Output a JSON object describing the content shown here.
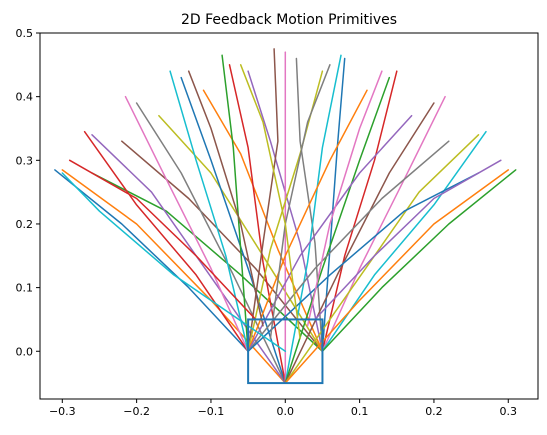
{
  "chart_data": {
    "type": "line",
    "title": "2D Feedback Motion Primitives",
    "xlabel": "",
    "ylabel": "",
    "xlim": [
      -0.33,
      0.34
    ],
    "ylim": [
      -0.075,
      0.5
    ],
    "grid": false,
    "legend": "none",
    "x_ticks": [
      {
        "value": -0.3,
        "label": "−0.3"
      },
      {
        "value": -0.2,
        "label": "−0.2"
      },
      {
        "value": -0.1,
        "label": "−0.1"
      },
      {
        "value": 0.0,
        "label": "0.0"
      },
      {
        "value": 0.1,
        "label": "0.1"
      },
      {
        "value": 0.2,
        "label": "0.2"
      },
      {
        "value": 0.3,
        "label": "0.3"
      }
    ],
    "y_ticks": [
      {
        "value": 0.0,
        "label": "0.0"
      },
      {
        "value": 0.1,
        "label": "0.1"
      },
      {
        "value": 0.2,
        "label": "0.2"
      },
      {
        "value": 0.3,
        "label": "0.3"
      },
      {
        "value": 0.4,
        "label": "0.4"
      },
      {
        "value": 0.5,
        "label": "0.5"
      }
    ],
    "colors": [
      "#1f77b4",
      "#ff7f0e",
      "#2ca02c",
      "#d62728",
      "#9467bd",
      "#8c564b",
      "#e377c2",
      "#7f7f7f",
      "#bcbd22",
      "#17becf"
    ],
    "start_region": {
      "x": [
        -0.05,
        0.05
      ],
      "y": [
        -0.05,
        0.05
      ]
    },
    "series": [
      {
        "values": [
          [
            -0.05,
            0.0
          ],
          [
            -0.13,
            0.1
          ],
          [
            -0.22,
            0.2
          ],
          [
            -0.31,
            0.285
          ]
        ]
      },
      {
        "values": [
          [
            0.0,
            -0.05
          ],
          [
            -0.1,
            0.08
          ],
          [
            -0.2,
            0.2
          ],
          [
            -0.3,
            0.285
          ]
        ]
      },
      {
        "values": [
          [
            0.05,
            0.0
          ],
          [
            -0.06,
            0.12
          ],
          [
            -0.16,
            0.22
          ],
          [
            -0.26,
            0.28
          ]
        ]
      },
      {
        "values": [
          [
            -0.05,
            0.0
          ],
          [
            -0.12,
            0.12
          ],
          [
            -0.2,
            0.23
          ],
          [
            -0.27,
            0.345
          ]
        ]
      },
      {
        "values": [
          [
            0.0,
            -0.05
          ],
          [
            -0.09,
            0.1
          ],
          [
            -0.18,
            0.25
          ],
          [
            -0.26,
            0.34
          ]
        ]
      },
      {
        "values": [
          [
            0.05,
            0.0
          ],
          [
            -0.04,
            0.13
          ],
          [
            -0.13,
            0.24
          ],
          [
            -0.22,
            0.33
          ]
        ]
      },
      {
        "values": [
          [
            -0.05,
            0.0
          ],
          [
            -0.1,
            0.13
          ],
          [
            -0.16,
            0.27
          ],
          [
            -0.215,
            0.4
          ]
        ]
      },
      {
        "values": [
          [
            0.0,
            -0.05
          ],
          [
            -0.07,
            0.12
          ],
          [
            -0.14,
            0.28
          ],
          [
            -0.2,
            0.39
          ]
        ]
      },
      {
        "values": [
          [
            0.05,
            0.0
          ],
          [
            -0.03,
            0.15
          ],
          [
            -0.1,
            0.28
          ],
          [
            -0.17,
            0.37
          ]
        ]
      },
      {
        "values": [
          [
            -0.05,
            0.0
          ],
          [
            -0.08,
            0.15
          ],
          [
            -0.12,
            0.3
          ],
          [
            -0.155,
            0.44
          ]
        ]
      },
      {
        "values": [
          [
            0.0,
            -0.05
          ],
          [
            -0.05,
            0.13
          ],
          [
            -0.1,
            0.3
          ],
          [
            -0.14,
            0.43
          ]
        ]
      },
      {
        "values": [
          [
            0.05,
            0.0
          ],
          [
            -0.01,
            0.16
          ],
          [
            -0.06,
            0.31
          ],
          [
            -0.11,
            0.41
          ]
        ]
      },
      {
        "values": [
          [
            -0.05,
            0.0
          ],
          [
            -0.06,
            0.16
          ],
          [
            -0.07,
            0.32
          ],
          [
            -0.085,
            0.465
          ]
        ]
      },
      {
        "values": [
          [
            0.0,
            -0.05
          ],
          [
            -0.03,
            0.14
          ],
          [
            -0.05,
            0.32
          ],
          [
            -0.075,
            0.45
          ]
        ]
      },
      {
        "values": [
          [
            0.05,
            0.0
          ],
          [
            0.02,
            0.17
          ],
          [
            -0.02,
            0.33
          ],
          [
            -0.05,
            0.44
          ]
        ]
      },
      {
        "values": [
          [
            -0.05,
            0.0
          ],
          [
            -0.03,
            0.17
          ],
          [
            -0.01,
            0.33
          ],
          [
            -0.015,
            0.475
          ]
        ]
      },
      {
        "values": [
          [
            0.0,
            -0.05
          ],
          [
            0.0,
            0.15
          ],
          [
            0.0,
            0.33
          ],
          [
            0.0,
            0.47
          ]
        ]
      },
      {
        "values": [
          [
            0.05,
            0.0
          ],
          [
            0.04,
            0.17
          ],
          [
            0.02,
            0.33
          ],
          [
            0.015,
            0.46
          ]
        ]
      },
      {
        "values": [
          [
            -0.05,
            0.0
          ],
          [
            -0.02,
            0.16
          ],
          [
            0.02,
            0.31
          ],
          [
            0.05,
            0.44
          ]
        ]
      },
      {
        "values": [
          [
            0.0,
            -0.05
          ],
          [
            0.03,
            0.14
          ],
          [
            0.05,
            0.32
          ],
          [
            0.075,
            0.465
          ]
        ]
      },
      {
        "values": [
          [
            0.05,
            0.0
          ],
          [
            0.06,
            0.16
          ],
          [
            0.07,
            0.32
          ],
          [
            0.08,
            0.46
          ]
        ]
      },
      {
        "values": [
          [
            -0.05,
            0.0
          ],
          [
            0.0,
            0.15
          ],
          [
            0.06,
            0.3
          ],
          [
            0.11,
            0.41
          ]
        ]
      },
      {
        "values": [
          [
            0.0,
            -0.05
          ],
          [
            0.05,
            0.13
          ],
          [
            0.1,
            0.3
          ],
          [
            0.14,
            0.43
          ]
        ]
      },
      {
        "values": [
          [
            0.05,
            0.0
          ],
          [
            0.08,
            0.15
          ],
          [
            0.12,
            0.3
          ],
          [
            0.15,
            0.44
          ]
        ]
      },
      {
        "values": [
          [
            -0.05,
            0.0
          ],
          [
            0.02,
            0.15
          ],
          [
            0.1,
            0.28
          ],
          [
            0.17,
            0.37
          ]
        ]
      },
      {
        "values": [
          [
            0.0,
            -0.05
          ],
          [
            0.07,
            0.12
          ],
          [
            0.14,
            0.28
          ],
          [
            0.2,
            0.39
          ]
        ]
      },
      {
        "values": [
          [
            0.05,
            0.0
          ],
          [
            0.1,
            0.13
          ],
          [
            0.16,
            0.27
          ],
          [
            0.215,
            0.4
          ]
        ]
      },
      {
        "values": [
          [
            -0.05,
            0.0
          ],
          [
            0.04,
            0.13
          ],
          [
            0.13,
            0.24
          ],
          [
            0.22,
            0.33
          ]
        ]
      },
      {
        "values": [
          [
            0.0,
            -0.05
          ],
          [
            0.09,
            0.1
          ],
          [
            0.18,
            0.25
          ],
          [
            0.26,
            0.34
          ]
        ]
      },
      {
        "values": [
          [
            0.05,
            0.0
          ],
          [
            0.12,
            0.12
          ],
          [
            0.2,
            0.23
          ],
          [
            0.27,
            0.345
          ]
        ]
      },
      {
        "values": [
          [
            -0.05,
            0.0
          ],
          [
            0.06,
            0.12
          ],
          [
            0.16,
            0.22
          ],
          [
            0.26,
            0.28
          ]
        ]
      },
      {
        "values": [
          [
            0.0,
            -0.05
          ],
          [
            0.1,
            0.08
          ],
          [
            0.2,
            0.2
          ],
          [
            0.3,
            0.285
          ]
        ]
      },
      {
        "values": [
          [
            0.05,
            0.0
          ],
          [
            0.13,
            0.1
          ],
          [
            0.22,
            0.2
          ],
          [
            0.31,
            0.285
          ]
        ]
      },
      {
        "values": [
          [
            -0.04,
            0.05
          ],
          [
            -0.12,
            0.15
          ],
          [
            -0.2,
            0.24
          ],
          [
            -0.29,
            0.3
          ]
        ]
      },
      {
        "values": [
          [
            0.04,
            0.05
          ],
          [
            0.12,
            0.15
          ],
          [
            0.2,
            0.24
          ],
          [
            0.29,
            0.3
          ]
        ]
      },
      {
        "values": [
          [
            -0.03,
            0.04
          ],
          [
            -0.06,
            0.2
          ],
          [
            -0.1,
            0.35
          ],
          [
            -0.13,
            0.44
          ]
        ]
      },
      {
        "values": [
          [
            0.03,
            0.04
          ],
          [
            0.06,
            0.2
          ],
          [
            0.1,
            0.35
          ],
          [
            0.13,
            0.44
          ]
        ]
      },
      {
        "values": [
          [
            -0.02,
            0.02
          ],
          [
            0.0,
            0.2
          ],
          [
            0.03,
            0.36
          ],
          [
            0.06,
            0.45
          ]
        ]
      },
      {
        "values": [
          [
            0.02,
            0.02
          ],
          [
            0.0,
            0.2
          ],
          [
            -0.03,
            0.36
          ],
          [
            -0.06,
            0.45
          ]
        ]
      },
      {
        "values": [
          [
            0.0,
            0.0
          ],
          [
            -0.15,
            0.12
          ],
          [
            -0.25,
            0.22
          ],
          [
            -0.3,
            0.28
          ]
        ]
      }
    ]
  }
}
